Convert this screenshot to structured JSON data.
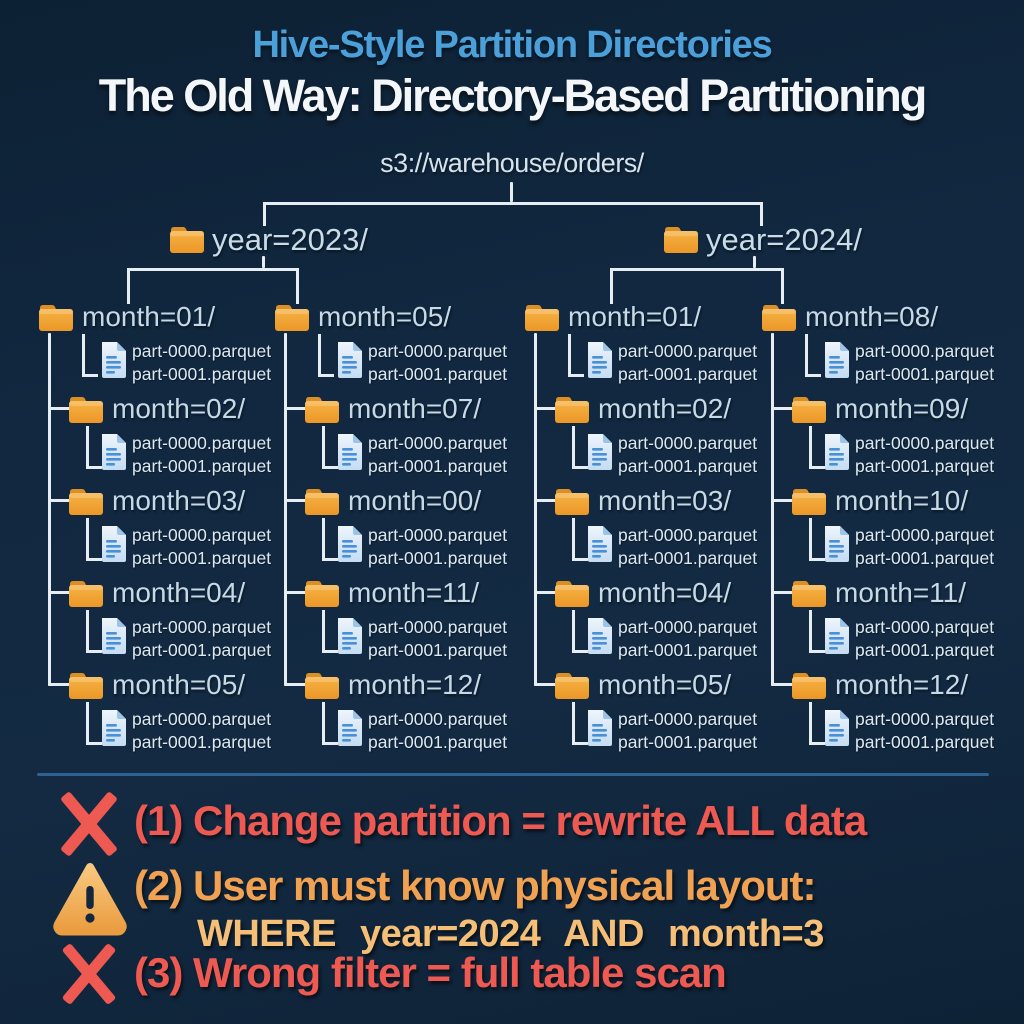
{
  "header": {
    "title": "Hive-Style Partition Directories",
    "subtitle": "The Old Way: Directory-Based Partitioning"
  },
  "tree": {
    "root_path": "s3://warehouse/orders/",
    "file_names": [
      "part-0000.parquet",
      "part-0001.parquet"
    ],
    "years": [
      {
        "label": "year=2023/",
        "month_columns": [
          [
            "month=01/",
            "month=02/",
            "month=03/",
            "month=04/",
            "month=05/"
          ],
          [
            "month=05/",
            "month=07/",
            "month=00/",
            "month=11/",
            "month=12/"
          ]
        ]
      },
      {
        "label": "year=2024/",
        "month_columns": [
          [
            "month=01/",
            "month=02/",
            "month=03/",
            "month=04/",
            "month=05/"
          ],
          [
            "month=08/",
            "month=09/",
            "month=10/",
            "month=11/",
            "month=12/"
          ]
        ]
      }
    ]
  },
  "issues": [
    {
      "icon": "cross-icon",
      "text": "(1) Change partition = rewrite ALL data"
    },
    {
      "icon": "warning-icon",
      "text": "(2) User must know physical layout:",
      "code": "WHERE year=2024 AND month=3"
    },
    {
      "icon": "cross-icon",
      "text": "(3) Wrong filter = full table scan"
    }
  ],
  "colors": {
    "background": "#112840",
    "title_blue": "#4ca0d9",
    "subtitle_white": "#f4f7fa",
    "tree_text": "#c5d9e7",
    "file_text": "#dde9f2",
    "tree_line": "#e6edf3",
    "divider_blue": "#2d6394",
    "error_red": "#ee5a52",
    "warning_orange": "#f0a152",
    "code_orange": "#f6bf77",
    "folder_orange": "#f0a636",
    "file_blue": "#cfe2f5"
  }
}
